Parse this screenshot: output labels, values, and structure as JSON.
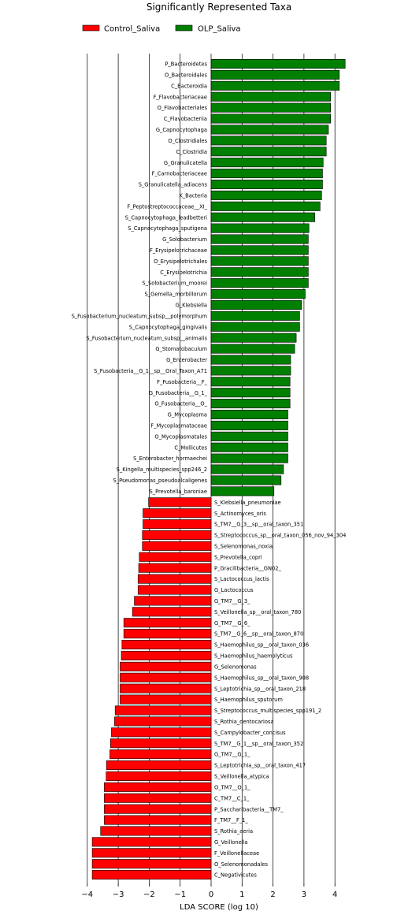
{
  "chart_data": {
    "type": "bar",
    "orientation": "horizontal",
    "title": "Significantly Represented Taxa",
    "xlabel": "LDA SCORE (log 10)",
    "ylabel": "",
    "xlim": [
      -4.4,
      4.4
    ],
    "xticks": [
      -4,
      -3,
      -2,
      -1,
      0,
      1,
      2,
      3,
      4
    ],
    "xtick_labels": [
      "−4",
      "−3",
      "−2",
      "−1",
      "0",
      "1",
      "2",
      "3",
      "4"
    ],
    "grid": "vertical",
    "legend_position": "top-left",
    "series": [
      {
        "name": "Control_Saliva",
        "color": "#ff0000"
      },
      {
        "name": "OLP_Saliva",
        "color": "#007f00"
      }
    ],
    "categories": [
      "P_Bacteroidetes",
      "O_Bacteroidales",
      "C_Bacteroidia",
      "F_Flavobacteriaceae",
      "O_Flavobacteriales",
      "C_Flavobacteriia",
      "G_Capnocytophaga",
      "O_Clostridiales",
      "C_Clostridia",
      "G_Granulicatella",
      "F_Carnobacteriaceae",
      "S_Granulicatella_adiacens",
      "K_Bacteria",
      "F_Peptostreptococcaceae__XI_",
      "S_Capnocytophaga_leadbetteri",
      "S_Capnocytophaga_sputigena",
      "G_Solobacterium",
      "F_Erysipelotrichaceae",
      "O_Erysipelotrichales",
      "C_Erysipelotrichia",
      "S_Solobacterium_moorei",
      "S_Gemella_morbillorum",
      "G_Klebsiella",
      "S_Fusobacterium_nucleatum_subsp__polymorphum",
      "S_Capnocytophaga_gingivalis",
      "S_Fusobacterium_nucleatum_subsp__animalis",
      "G_Stomatobaculum",
      "G_Enterobacter",
      "S_Fusobacteria__G_1__sp__Oral_Taxon_A71",
      "F_Fusobacteria__F_",
      "G_Fusobacteria__G_1_",
      "O_Fusobacteria__O_",
      "G_Mycoplasma",
      "F_Mycoplasmataceae",
      "O_Mycoplasmatales",
      "C_Mollicutes",
      "S_Enterobacter_hormaechei",
      "S_Kingella_multispecies_spp246_2",
      "S_Pseudomonas_pseudoalcaligenes",
      "S_Prevotella_baroniae",
      "S_Klebsiella_pneumoniae",
      "S_Actinomyces_oris",
      "S_TM7__G_3__sp__oral_taxon_351",
      "S_Streptococcus_sp__oral_taxon_056_nov_94_304",
      "S_Selenomonas_noxia",
      "S_Prevotella_copri",
      "P_Gracilibacteria__GN02_",
      "S_Lactococcus_lactis",
      "G_Lactococcus",
      "G_TM7__G_3_",
      "S_Veillonella_sp__oral_taxon_780",
      "G_TM7__G_6_",
      "S_TM7__G_6__sp__oral_taxon_870",
      "S_Haemophilus_sp__oral_taxon_036",
      "S_Haemophilus_haemolyticus",
      "G_Selenomonas",
      "S_Haemophilus_sp__oral_taxon_908",
      "S_Leptotrichia_sp__oral_taxon_218",
      "S_Haemophilus_sputorum",
      "S_Streptococcus_multispecies_spp191_2",
      "S_Rothia_dentocariosa",
      "S_Campylobacter_concisus",
      "S_TM7__G_1__sp__oral_taxon_352",
      "G_TM7__G_1_",
      "S_Leptotrichia_sp__oral_taxon_417",
      "S_Veillonella_atypica",
      "O_TM7__O_1_",
      "C_TM7__C_1_",
      "P_Saccharibacteria__TM7_",
      "F_TM7__F_1_",
      "S_Rothia_aeria",
      "G_Veillonella",
      "F_Veillonellaceae",
      "O_Selenomonadales",
      "C_Negativicutes"
    ],
    "values": [
      4.33,
      4.14,
      4.14,
      3.86,
      3.86,
      3.86,
      3.79,
      3.72,
      3.72,
      3.62,
      3.6,
      3.6,
      3.57,
      3.52,
      3.35,
      3.16,
      3.14,
      3.14,
      3.14,
      3.14,
      3.14,
      3.04,
      2.92,
      2.86,
      2.86,
      2.75,
      2.7,
      2.57,
      2.57,
      2.55,
      2.55,
      2.55,
      2.48,
      2.48,
      2.48,
      2.48,
      2.48,
      2.34,
      2.26,
      2.03,
      -2.02,
      -2.2,
      -2.2,
      -2.22,
      -2.22,
      -2.32,
      -2.34,
      -2.36,
      -2.36,
      -2.48,
      -2.54,
      -2.82,
      -2.82,
      -2.88,
      -2.9,
      -2.94,
      -2.94,
      -2.94,
      -2.94,
      -3.1,
      -3.12,
      -3.22,
      -3.25,
      -3.27,
      -3.38,
      -3.39,
      -3.45,
      -3.45,
      -3.45,
      -3.45,
      -3.57,
      -3.84,
      -3.84,
      -3.84,
      -3.84
    ]
  }
}
